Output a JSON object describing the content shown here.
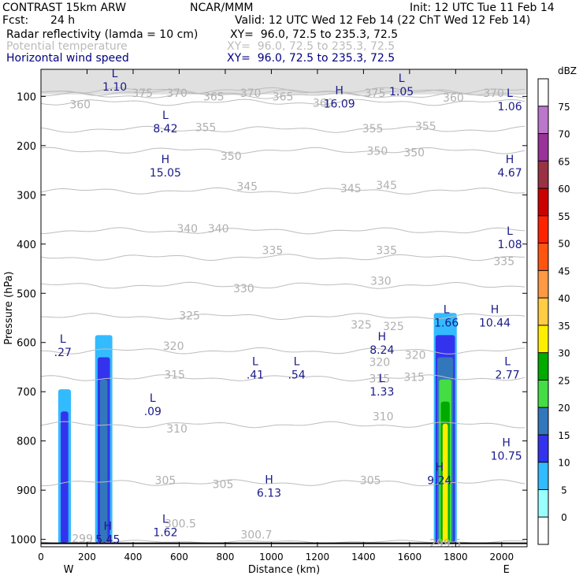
{
  "header": {
    "model": "CONTRAST 15km ARW",
    "center": "NCAR/MMM",
    "init": "Init: 12 UTC Tue 11 Feb 14",
    "fcst_label": "Fcst:",
    "fcst_value": "24 h",
    "valid": "Valid: 12 UTC Wed 12 Feb 14 (22 ChT Wed 12 Feb 14)",
    "fields": [
      {
        "name": "Radar reflectivity (lamda = 10 cm)",
        "xy": "XY=  96.0, 72.5 to 235.3, 72.5",
        "color": "#000000"
      },
      {
        "name": "Potential temperature",
        "xy": "XY=  96.0, 72.5 to 235.3, 72.5",
        "color": "#bbbbbb"
      },
      {
        "name": "Horizontal wind speed",
        "xy": "XY=  96.0, 72.5 to 235.3, 72.5",
        "color": "#000080"
      }
    ]
  },
  "chart_data": {
    "type": "cross-section",
    "xlabel": "Distance (km)",
    "ylabel": "Pressure (hPa)",
    "xlim": [
      0,
      2110
    ],
    "ylim": [
      1015,
      45
    ],
    "x_ticks": [
      0,
      200,
      400,
      600,
      800,
      1000,
      1200,
      1400,
      1600,
      1800,
      2000
    ],
    "y_ticks": [
      100,
      200,
      300,
      400,
      500,
      600,
      700,
      800,
      900,
      1000
    ],
    "west_label": "W",
    "east_label": "E",
    "colorbar": {
      "unit": "dBZ",
      "levels": [
        0,
        5,
        10,
        15,
        20,
        25,
        30,
        35,
        40,
        45,
        50,
        55,
        60,
        65,
        70,
        75
      ],
      "colors": [
        "#ffffff",
        "#99ffff",
        "#33bbff",
        "#3333ee",
        "#3377bb",
        "#44dd44",
        "#00aa00",
        "#ffee00",
        "#ffcc44",
        "#ff9944",
        "#ff5511",
        "#ff2200",
        "#cc0000",
        "#993344",
        "#993399",
        "#bb77cc",
        "#ffffff"
      ]
    },
    "theta_contours": [
      {
        "level": 300,
        "p": 1005
      },
      {
        "level": 305,
        "p": 885
      },
      {
        "level": 310,
        "p": 767
      },
      {
        "level": 315,
        "p": 672
      },
      {
        "level": 320,
        "p": 617
      },
      {
        "level": 325,
        "p": 547
      },
      {
        "level": 330,
        "p": 484
      },
      {
        "level": 335,
        "p": 427
      },
      {
        "level": 340,
        "p": 373
      },
      {
        "level": 345,
        "p": 292
      },
      {
        "level": 350,
        "p": 210
      },
      {
        "level": 355,
        "p": 167
      },
      {
        "level": 360,
        "p": 112
      },
      {
        "level": 365,
        "p": 98
      },
      {
        "level": 370,
        "p": 92
      },
      {
        "level": 375,
        "p": 88
      }
    ],
    "theta_labels": [
      {
        "text": "375",
        "x": 440,
        "p": 93
      },
      {
        "text": "370",
        "x": 590,
        "p": 93
      },
      {
        "text": "365",
        "x": 750,
        "p": 100
      },
      {
        "text": "370",
        "x": 910,
        "p": 93
      },
      {
        "text": "365",
        "x": 1050,
        "p": 100
      },
      {
        "text": "360",
        "x": 1225,
        "p": 113
      },
      {
        "text": "375",
        "x": 1450,
        "p": 93
      },
      {
        "text": "360",
        "x": 1790,
        "p": 103
      },
      {
        "text": "370",
        "x": 1965,
        "p": 93
      },
      {
        "text": "360",
        "x": 170,
        "p": 116
      },
      {
        "text": "355",
        "x": 715,
        "p": 163
      },
      {
        "text": "355",
        "x": 1440,
        "p": 165
      },
      {
        "text": "355",
        "x": 1670,
        "p": 160
      },
      {
        "text": "350",
        "x": 825,
        "p": 221
      },
      {
        "text": "350",
        "x": 1460,
        "p": 211
      },
      {
        "text": "350",
        "x": 1620,
        "p": 214
      },
      {
        "text": "345",
        "x": 895,
        "p": 283
      },
      {
        "text": "345",
        "x": 1345,
        "p": 287
      },
      {
        "text": "345",
        "x": 1500,
        "p": 280
      },
      {
        "text": "340",
        "x": 635,
        "p": 368
      },
      {
        "text": "340",
        "x": 770,
        "p": 368
      },
      {
        "text": "335",
        "x": 1005,
        "p": 412
      },
      {
        "text": "335",
        "x": 1500,
        "p": 412
      },
      {
        "text": "335",
        "x": 2010,
        "p": 435
      },
      {
        "text": "330",
        "x": 880,
        "p": 490
      },
      {
        "text": "330",
        "x": 1475,
        "p": 475
      },
      {
        "text": "325",
        "x": 645,
        "p": 545
      },
      {
        "text": "325",
        "x": 1390,
        "p": 564
      },
      {
        "text": "325",
        "x": 1530,
        "p": 567
      },
      {
        "text": "320",
        "x": 575,
        "p": 607
      },
      {
        "text": "320",
        "x": 1470,
        "p": 640
      },
      {
        "text": "320",
        "x": 1625,
        "p": 625
      },
      {
        "text": "315",
        "x": 580,
        "p": 665
      },
      {
        "text": "315",
        "x": 1470,
        "p": 673
      },
      {
        "text": "315",
        "x": 1620,
        "p": 670
      },
      {
        "text": "310",
        "x": 590,
        "p": 775
      },
      {
        "text": "310",
        "x": 1485,
        "p": 750
      },
      {
        "text": "305",
        "x": 540,
        "p": 880
      },
      {
        "text": "305",
        "x": 790,
        "p": 888
      },
      {
        "text": "305",
        "x": 1430,
        "p": 880
      },
      {
        "text": "300.5",
        "x": 605,
        "p": 968
      },
      {
        "text": "299",
        "x": 180,
        "p": 998
      },
      {
        "text": "300.7",
        "x": 935,
        "p": 990
      },
      {
        "text": "299.5",
        "x": 1755,
        "p": 1008
      }
    ],
    "wind_extrema": [
      {
        "type": "L",
        "value": "1.10",
        "x": 320,
        "p": 80
      },
      {
        "type": "H",
        "value": "16.09",
        "x": 1295,
        "p": 115
      },
      {
        "type": "L",
        "value": "1.05",
        "x": 1565,
        "p": 90
      },
      {
        "type": "L",
        "value": "1.06",
        "x": 2035,
        "p": 120
      },
      {
        "type": "L",
        "value": "8.42",
        "x": 540,
        "p": 165
      },
      {
        "type": "H",
        "value": "15.05",
        "x": 540,
        "p": 255
      },
      {
        "type": "H",
        "value": "4.67",
        "x": 2035,
        "p": 255
      },
      {
        "type": "L",
        "value": "1.08",
        "x": 2035,
        "p": 400
      },
      {
        "type": "L",
        "value": ".27",
        "x": 95,
        "p": 620
      },
      {
        "type": "L",
        "value": "1.66",
        "x": 1760,
        "p": 560
      },
      {
        "type": "H",
        "value": "10.44",
        "x": 1970,
        "p": 560
      },
      {
        "type": "H",
        "value": "8.24",
        "x": 1480,
        "p": 615
      },
      {
        "type": "L",
        "value": ".41",
        "x": 930,
        "p": 665
      },
      {
        "type": "L",
        "value": ".54",
        "x": 1110,
        "p": 665
      },
      {
        "type": "L",
        "value": "2.77",
        "x": 2025,
        "p": 665
      },
      {
        "type": "L",
        "value": "1.33",
        "x": 1480,
        "p": 700
      },
      {
        "type": "L",
        "value": ".09",
        "x": 485,
        "p": 740
      },
      {
        "type": "H",
        "value": "10.75",
        "x": 2020,
        "p": 830
      },
      {
        "type": "H",
        "value": "9.24",
        "x": 1730,
        "p": 880
      },
      {
        "type": "H",
        "value": "6.13",
        "x": 990,
        "p": 905
      },
      {
        "type": "L",
        "value": "1.62",
        "x": 540,
        "p": 985
      },
      {
        "type": "H",
        "value": "5.45",
        "x": 290,
        "p": 1000
      }
    ],
    "reflectivity_cells": [
      {
        "name": "west cell",
        "x_range": [
          75,
          130
        ],
        "p_top": 695,
        "max_dbz": 10
      },
      {
        "name": "west-central cell",
        "x_range": [
          235,
          310
        ],
        "p_top": 585,
        "max_dbz": 15
      },
      {
        "name": "east cell",
        "x_range": [
          1705,
          1805
        ],
        "p_top": 540,
        "max_dbz": 30
      }
    ],
    "surface_line": {
      "p": 1008
    }
  }
}
